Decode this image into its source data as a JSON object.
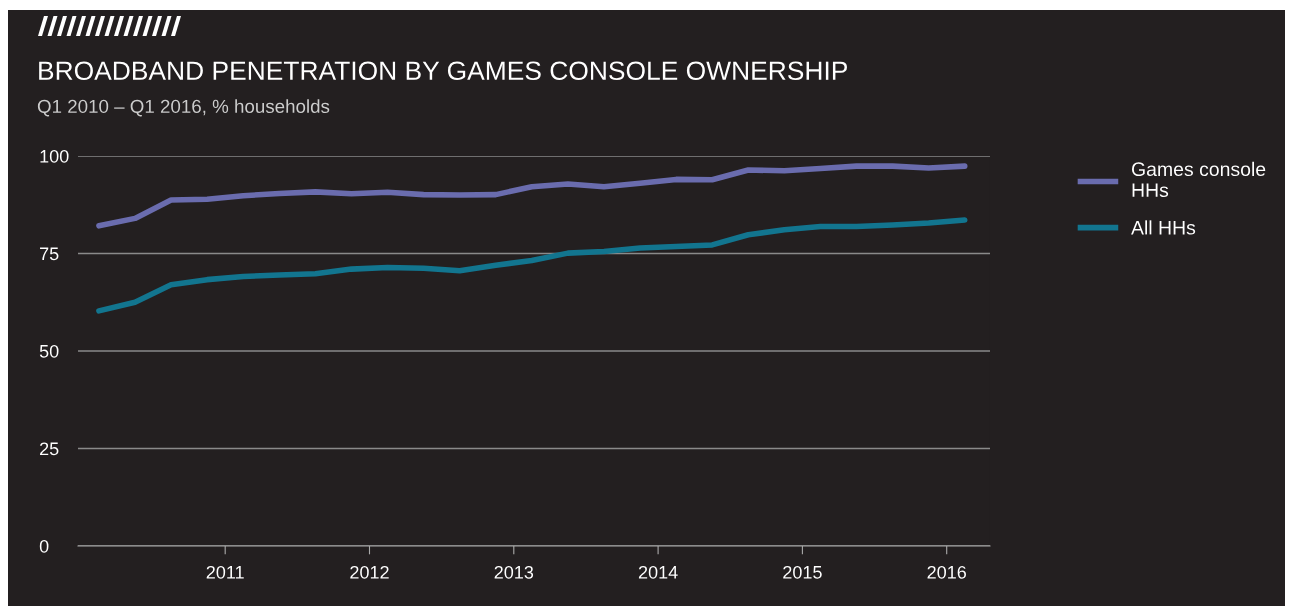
{
  "chart_data": {
    "type": "line",
    "title": "BROADBAND PENETRATION BY GAMES CONSOLE OWNERSHIP",
    "subtitle": "Q1 2010 – Q1 2016, % households",
    "x": [
      2010.125,
      2010.375,
      2010.625,
      2010.875,
      2011.125,
      2011.375,
      2011.625,
      2011.875,
      2012.125,
      2012.375,
      2012.625,
      2012.875,
      2013.125,
      2013.375,
      2013.625,
      2013.875,
      2014.125,
      2014.375,
      2014.625,
      2014.875,
      2015.125,
      2015.375,
      2015.625,
      2015.875,
      2016.125
    ],
    "series": [
      {
        "name": "Games console\nHHs",
        "color": "#6a6cae",
        "values": [
          82.1,
          84,
          88.7,
          88.9,
          89.8,
          90.4,
          90.8,
          90.3,
          90.7,
          90.1,
          90.0,
          90.1,
          92.1,
          92.8,
          92.1,
          93,
          94,
          93.9,
          96.4,
          96.2,
          96.8,
          97.4,
          97.4,
          96.9,
          97.4
        ]
      },
      {
        "name": "All HHs",
        "color": "#12758f",
        "values": [
          60.3,
          62.5,
          67,
          68.3,
          69.1,
          69.5,
          69.8,
          71,
          71.4,
          71.2,
          70.6,
          72,
          73.2,
          75.1,
          75.5,
          76.4,
          76.8,
          77.2,
          79.8,
          81.1,
          81.9,
          81.9,
          82.3,
          82.8,
          83.6
        ]
      }
    ],
    "xlim": [
      2009.98,
      2016.3
    ],
    "xticks": [
      2011,
      2012,
      2013,
      2014,
      2015,
      2016
    ],
    "ylim": [
      0,
      100
    ],
    "yticks": [
      0,
      25,
      50,
      75,
      100
    ],
    "grid": "y",
    "legend": "right",
    "marker": "none",
    "line_style": "solid"
  }
}
